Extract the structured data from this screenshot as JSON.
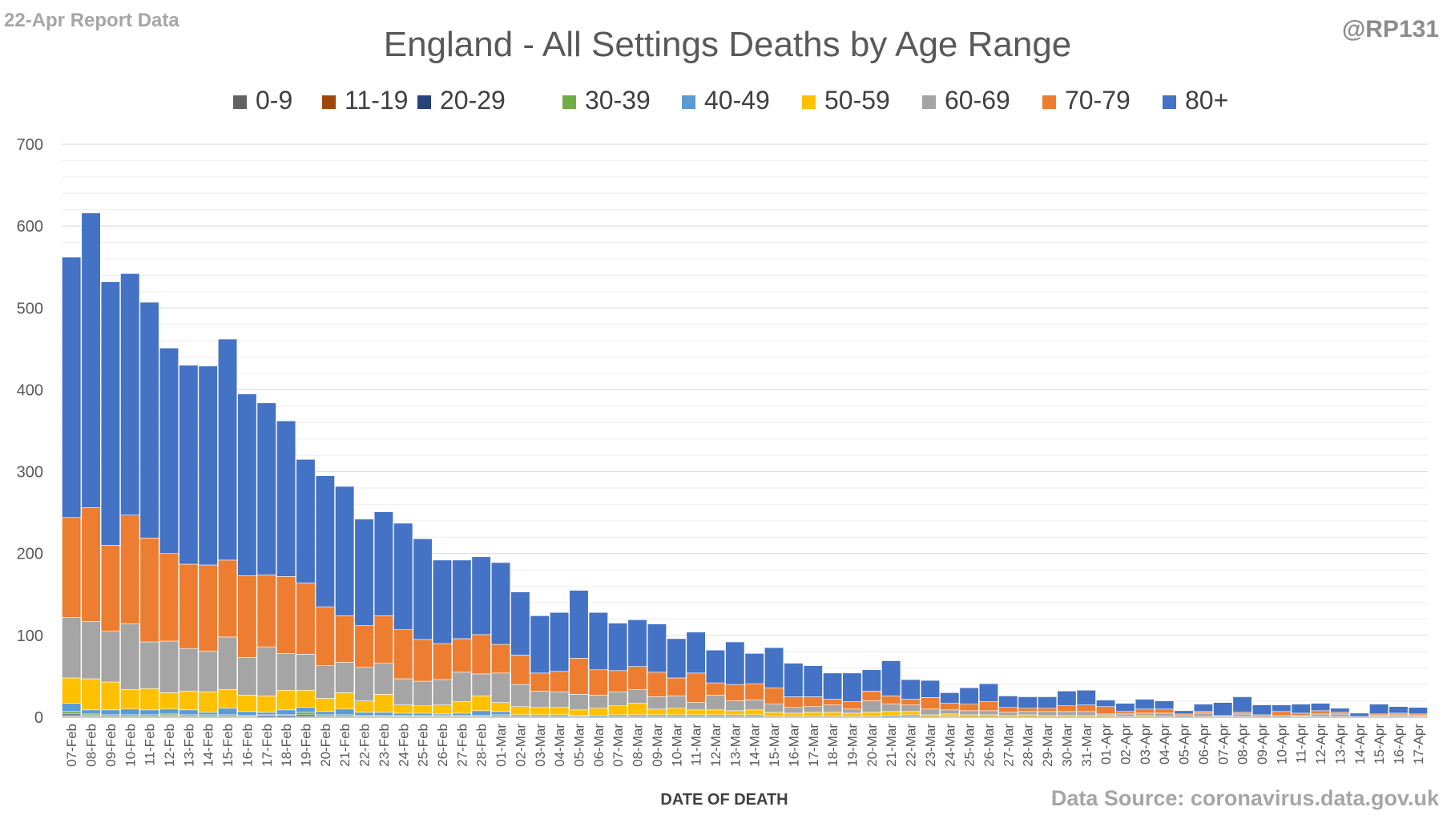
{
  "header": {
    "report_label": "22-Apr Report Data",
    "handle": "@RP131",
    "source": "Data Source: coronavirus.data.gov.uk"
  },
  "chart_data": {
    "type": "bar",
    "stacked": true,
    "title": "England - All Settings Deaths by Age Range",
    "xlabel": "DATE OF DEATH",
    "ylabel": "",
    "ylim": [
      0,
      700
    ],
    "yticks": [
      0,
      100,
      200,
      300,
      400,
      500,
      600,
      700
    ],
    "grid": true,
    "legend_position": "top",
    "categories": [
      "07-Feb",
      "08-Feb",
      "09-Feb",
      "10-Feb",
      "11-Feb",
      "12-Feb",
      "13-Feb",
      "14-Feb",
      "15-Feb",
      "16-Feb",
      "17-Feb",
      "18-Feb",
      "19-Feb",
      "20-Feb",
      "21-Feb",
      "22-Feb",
      "23-Feb",
      "24-Feb",
      "25-Feb",
      "26-Feb",
      "27-Feb",
      "28-Feb",
      "01-Mar",
      "02-Mar",
      "03-Mar",
      "04-Mar",
      "05-Mar",
      "06-Mar",
      "07-Mar",
      "08-Mar",
      "09-Mar",
      "10-Mar",
      "11-Mar",
      "12-Mar",
      "13-Mar",
      "14-Mar",
      "15-Mar",
      "16-Mar",
      "17-Mar",
      "18-Mar",
      "19-Mar",
      "20-Mar",
      "21-Mar",
      "22-Mar",
      "23-Mar",
      "24-Mar",
      "25-Mar",
      "26-Mar",
      "27-Mar",
      "28-Mar",
      "29-Mar",
      "30-Mar",
      "31-Mar",
      "01-Apr",
      "02-Apr",
      "03-Apr",
      "04-Apr",
      "05-Apr",
      "06-Apr",
      "07-Apr",
      "08-Apr",
      "09-Apr",
      "10-Apr",
      "11-Apr",
      "12-Apr",
      "13-Apr",
      "14-Apr",
      "15-Apr",
      "16-Apr",
      "17-Apr"
    ],
    "series": [
      {
        "name": "0-9",
        "color": "#636363",
        "values": [
          1,
          0,
          0,
          0,
          0,
          0,
          0,
          0,
          0,
          0,
          0,
          0,
          0,
          0,
          0,
          0,
          0,
          0,
          0,
          0,
          0,
          0,
          0,
          0,
          0,
          0,
          0,
          0,
          0,
          0,
          0,
          0,
          0,
          0,
          0,
          0,
          0,
          0,
          0,
          0,
          0,
          0,
          0,
          0,
          0,
          0,
          0,
          0,
          0,
          0,
          0,
          0,
          0,
          0,
          0,
          0,
          0,
          0,
          0,
          0,
          0,
          0,
          0,
          0,
          0,
          0,
          0,
          0,
          0,
          0
        ]
      },
      {
        "name": "11-19",
        "color": "#9e480e",
        "values": [
          1,
          1,
          0,
          0,
          0,
          1,
          0,
          0,
          0,
          0,
          0,
          0,
          1,
          0,
          0,
          0,
          0,
          0,
          0,
          0,
          0,
          0,
          0,
          0,
          0,
          0,
          0,
          0,
          0,
          0,
          0,
          0,
          0,
          0,
          0,
          0,
          0,
          0,
          0,
          0,
          0,
          0,
          0,
          0,
          0,
          0,
          0,
          0,
          0,
          0,
          0,
          0,
          0,
          0,
          0,
          0,
          0,
          0,
          0,
          0,
          0,
          0,
          0,
          0,
          0,
          0,
          0,
          0,
          0,
          0
        ]
      },
      {
        "name": "20-29",
        "color": "#264478",
        "values": [
          2,
          1,
          1,
          1,
          1,
          1,
          1,
          1,
          1,
          1,
          2,
          2,
          2,
          1,
          1,
          1,
          1,
          1,
          1,
          1,
          1,
          1,
          1,
          1,
          1,
          1,
          1,
          0,
          1,
          1,
          1,
          1,
          1,
          1,
          1,
          1,
          0,
          0,
          0,
          0,
          0,
          0,
          0,
          1,
          0,
          0,
          0,
          0,
          0,
          0,
          0,
          0,
          0,
          0,
          0,
          0,
          0,
          0,
          0,
          0,
          0,
          0,
          0,
          0,
          0,
          0,
          0,
          0,
          0,
          0
        ]
      },
      {
        "name": "30-39",
        "color": "#70ad47",
        "values": [
          3,
          2,
          2,
          2,
          2,
          2,
          2,
          2,
          2,
          1,
          1,
          1,
          3,
          2,
          2,
          1,
          1,
          1,
          1,
          1,
          1,
          1,
          2,
          0,
          0,
          0,
          0,
          0,
          0,
          0,
          0,
          0,
          0,
          0,
          0,
          0,
          0,
          0,
          0,
          0,
          0,
          0,
          0,
          0,
          0,
          0,
          0,
          0,
          0,
          0,
          0,
          0,
          0,
          0,
          0,
          0,
          0,
          0,
          0,
          0,
          0,
          0,
          0,
          0,
          0,
          0,
          0,
          0,
          0,
          0
        ]
      },
      {
        "name": "40-49",
        "color": "#5b9bd5",
        "values": [
          10,
          5,
          6,
          7,
          6,
          6,
          6,
          3,
          8,
          5,
          3,
          6,
          6,
          4,
          7,
          4,
          4,
          3,
          3,
          2,
          3,
          6,
          4,
          2,
          2,
          2,
          1,
          2,
          2,
          2,
          2,
          2,
          2,
          2,
          2,
          2,
          1,
          1,
          1,
          1,
          1,
          1,
          2,
          2,
          0,
          1,
          0,
          0,
          0,
          0,
          0,
          0,
          0,
          0,
          0,
          0,
          0,
          0,
          0,
          0,
          0,
          0,
          0,
          0,
          0,
          0,
          0,
          0,
          0,
          0
        ]
      },
      {
        "name": "50-59",
        "color": "#ffc000",
        "values": [
          31,
          38,
          34,
          24,
          26,
          20,
          23,
          25,
          23,
          20,
          20,
          24,
          21,
          16,
          20,
          14,
          22,
          10,
          9,
          11,
          14,
          18,
          11,
          10,
          9,
          9,
          7,
          9,
          11,
          14,
          7,
          8,
          6,
          6,
          5,
          6,
          5,
          4,
          5,
          5,
          4,
          5,
          5,
          4,
          3,
          3,
          3,
          3,
          2,
          3,
          2,
          2,
          2,
          2,
          1,
          2,
          1,
          0,
          1,
          1,
          1,
          0,
          0,
          1,
          1,
          1,
          0,
          1,
          1,
          1
        ]
      },
      {
        "name": "60-69",
        "color": "#a5a5a5",
        "values": [
          74,
          70,
          62,
          80,
          57,
          63,
          52,
          50,
          64,
          46,
          60,
          45,
          44,
          40,
          37,
          41,
          38,
          32,
          30,
          31,
          36,
          27,
          36,
          27,
          20,
          19,
          19,
          16,
          17,
          17,
          15,
          15,
          9,
          18,
          12,
          12,
          10,
          7,
          7,
          9,
          5,
          14,
          9,
          8,
          7,
          5,
          5,
          5,
          4,
          4,
          5,
          5,
          5,
          2,
          3,
          3,
          4,
          2,
          4,
          1,
          3,
          1,
          2,
          1,
          3,
          3,
          1,
          1,
          2,
          1
        ]
      },
      {
        "name": "70-79",
        "color": "#ed7d31",
        "values": [
          122,
          139,
          105,
          133,
          127,
          107,
          103,
          105,
          94,
          100,
          88,
          94,
          87,
          72,
          57,
          51,
          58,
          60,
          51,
          44,
          41,
          48,
          35,
          36,
          22,
          25,
          44,
          31,
          26,
          28,
          30,
          22,
          36,
          15,
          20,
          20,
          20,
          13,
          12,
          7,
          9,
          12,
          10,
          7,
          14,
          8,
          8,
          11,
          6,
          4,
          4,
          7,
          8,
          9,
          3,
          5,
          5,
          2,
          2,
          0,
          2,
          2,
          5,
          3,
          4,
          2,
          0,
          2,
          2,
          2
        ]
      },
      {
        "name": "80+",
        "color": "#4472c4",
        "values": [
          318,
          360,
          322,
          295,
          288,
          251,
          243,
          243,
          270,
          222,
          210,
          190,
          151,
          160,
          158,
          130,
          127,
          130,
          123,
          102,
          96,
          95,
          100,
          77,
          70,
          72,
          83,
          70,
          58,
          57,
          59,
          48,
          50,
          40,
          52,
          37,
          49,
          41,
          38,
          32,
          35,
          26,
          43,
          24,
          21,
          13,
          20,
          22,
          14,
          14,
          14,
          18,
          18,
          8,
          10,
          12,
          10,
          4,
          9,
          16,
          19,
          12,
          8,
          11,
          9,
          5,
          4,
          12,
          8,
          8
        ]
      }
    ]
  }
}
